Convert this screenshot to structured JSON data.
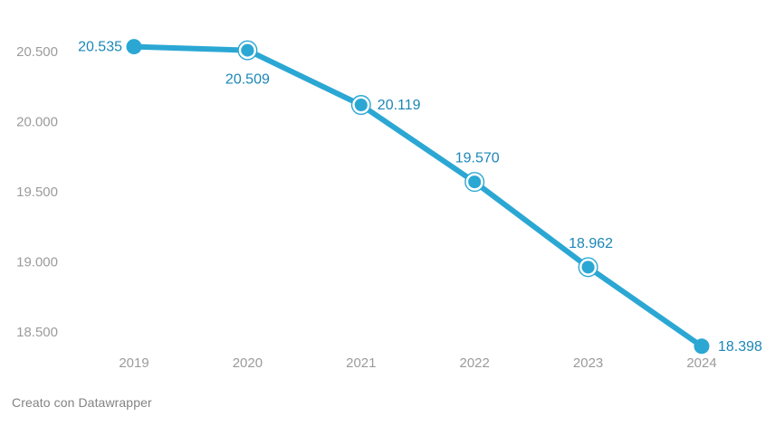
{
  "chart_data": {
    "type": "line",
    "title": "",
    "xlabel": "",
    "ylabel": "",
    "grid": false,
    "legend": "none",
    "categories": [
      "2019",
      "2020",
      "2021",
      "2022",
      "2023",
      "2024"
    ],
    "values": [
      20535,
      20509,
      20119,
      19570,
      18962,
      18398
    ],
    "value_labels": [
      "20.535",
      "20.509",
      "20.119",
      "19.570",
      "18.962",
      "18.398"
    ],
    "y_ticks": [
      {
        "value": 20500,
        "label": "20.500"
      },
      {
        "value": 20000,
        "label": "20.000"
      },
      {
        "value": 19500,
        "label": "19.500"
      },
      {
        "value": 19000,
        "label": "19.000"
      },
      {
        "value": 18500,
        "label": "18.500"
      }
    ],
    "ylim": [
      18350,
      20650
    ],
    "label_placements": [
      "left",
      "below",
      "right",
      "above",
      "above",
      "right"
    ],
    "point_styles": [
      "solid",
      "ring",
      "ring",
      "ring",
      "ring",
      "solid"
    ],
    "colors": {
      "line": "#2BA7D4",
      "value_label": "#1B87B8",
      "axis_label": "#9B9B9B",
      "footer": "#838383"
    }
  },
  "footer": {
    "credit": "Creato con Datawrapper"
  }
}
